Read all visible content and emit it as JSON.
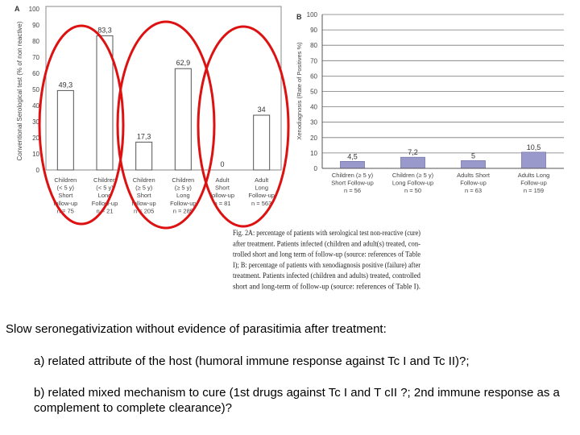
{
  "chart_data": [
    {
      "type": "bar",
      "panel_label": "A",
      "ylabel": "Conventional Serological test (% of non reactive)",
      "ylim": [
        0,
        100
      ],
      "yticks": [
        0,
        10,
        20,
        30,
        40,
        50,
        60,
        70,
        80,
        90,
        100
      ],
      "categories": [
        [
          "Children",
          "(< 5 y)",
          "Short",
          "follow-up",
          "n = 75"
        ],
        [
          "Children",
          "(< 5 y)",
          "Long",
          "Follow-up",
          "n = 21"
        ],
        [
          "Children",
          "(≥ 5 y)",
          "Short",
          "follow-up",
          "n = 205"
        ],
        [
          "Children",
          "(≥ 5 y)",
          "Long",
          "Follow-up",
          "n = 285"
        ],
        [
          "Adult",
          "Short",
          "follow-up",
          "n = 81"
        ],
        [
          "Adult",
          "Long",
          "Follow-up",
          "n = 563"
        ]
      ],
      "values": [
        49.3,
        83.3,
        17.3,
        62.9,
        0,
        34
      ],
      "value_labels": [
        "49,3",
        "83,3",
        "17,3",
        "62,9",
        "0",
        "34"
      ],
      "grid": false,
      "bar_color": "#ffffff"
    },
    {
      "type": "bar",
      "panel_label": "B",
      "ylabel": "Xenodiagnosis (Rate of Positives %)",
      "ylim": [
        0,
        100
      ],
      "yticks": [
        0,
        10,
        20,
        30,
        40,
        50,
        60,
        70,
        80,
        90,
        100
      ],
      "categories": [
        [
          "Children (≥ 5 y)",
          "Short Follow-up",
          "n = 56"
        ],
        [
          "Children (≥ 5 y)",
          "Long Follow-up",
          "n = 50"
        ],
        [
          "Adults Short",
          "Follow-up",
          "n = 63"
        ],
        [
          "Adults Long",
          "Follow-up",
          "n = 159"
        ]
      ],
      "values": [
        4.5,
        7.2,
        5,
        10.5
      ],
      "value_labels": [
        "4,5",
        "7,2",
        "5",
        "10,5"
      ],
      "grid": true,
      "bar_color": "#9999cc"
    }
  ],
  "figure_caption": [
    "Fig. 2A: percentage of patients with serological test non-reactive (cure)",
    "after treatment. Patients infected (children and adult(s) treated, con-",
    "trolled short and long term of follow-up (source: references of Table",
    "I); B: percentage of patients with xenodiagnosis positive (failure) after",
    "treatment. Patients infected (children and adults) treated, controlled",
    "short and long-term of follow-up (source: references of Table I)."
  ],
  "notes": {
    "main": "Slow seronegativization without evidence of parasitimia after treatment:",
    "a": "a) related attribute of the host (humoral immune response against Tc I and Tc II)?;",
    "b": "b) related mixed mechanism to cure (1st drugs against Tc I and T cII ?; 2nd immune response as a complement to complete clearance)?"
  },
  "colors": {
    "ellipse": "#dd1111",
    "bar_b": "#9999cc",
    "axis": "#555555",
    "text": "#000000"
  }
}
